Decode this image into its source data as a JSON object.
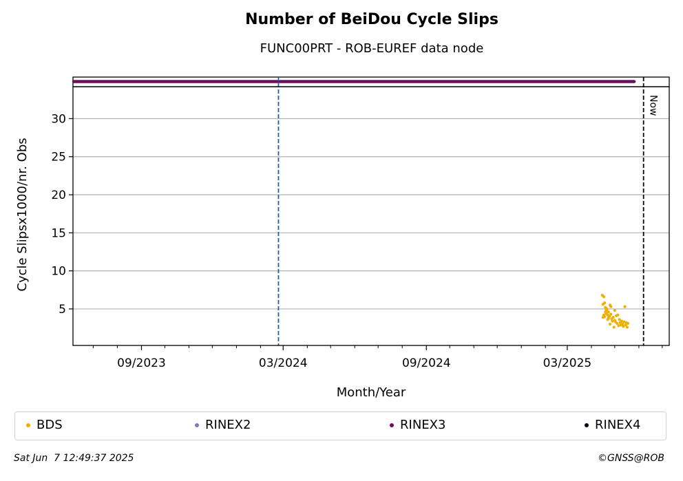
{
  "chart_data": {
    "type": "scatter",
    "title": "Number of BeiDou Cycle Slips",
    "subtitle": "FUNC00PRT - ROB-EUREF data node",
    "xlabel": "Month/Year",
    "ylabel": "Cycle Slipsx1000/nr. Obs",
    "xlim": [
      "2023-06-05",
      "2025-07-10"
    ],
    "ylim": [
      0.2,
      34.2
    ],
    "yticks": [
      5,
      10,
      15,
      20,
      25,
      30
    ],
    "xticks": [
      {
        "date": "2023-09-01",
        "label": "09/2023"
      },
      {
        "date": "2024-03-01",
        "label": "03/2024"
      },
      {
        "date": "2024-09-01",
        "label": "09/2024"
      },
      {
        "date": "2025-03-01",
        "label": "03/2025"
      }
    ],
    "minor_xticks": [
      "2023-07-01",
      "2023-08-01",
      "2023-10-01",
      "2023-11-01",
      "2023-12-01",
      "2024-01-01",
      "2024-02-01",
      "2024-04-01",
      "2024-05-01",
      "2024-06-01",
      "2024-07-01",
      "2024-08-01",
      "2024-10-01",
      "2024-11-01",
      "2024-12-01",
      "2025-01-01",
      "2025-02-01",
      "2025-04-01",
      "2025-05-01",
      "2025-06-01",
      "2025-07-01"
    ],
    "grid": "horizontal",
    "vlines": [
      {
        "date": "2024-02-24",
        "color": "#1f5fa6",
        "style": "dashed",
        "label": ""
      },
      {
        "date": "2025-06-07",
        "color": "#000000",
        "style": "dashed",
        "label": "Now"
      }
    ],
    "availability_strip": {
      "series": "RINEX3",
      "color": "#6a0f5d",
      "start": "2023-06-06",
      "end": "2025-05-26"
    },
    "series": [
      {
        "name": "BDS",
        "color": "#f0b000",
        "points": [
          {
            "x": "2025-04-15",
            "y": 6.8
          },
          {
            "x": "2025-04-17",
            "y": 6.6
          },
          {
            "x": "2025-04-16",
            "y": 5.6
          },
          {
            "x": "2025-04-18",
            "y": 5.8
          },
          {
            "x": "2025-04-17",
            "y": 4.2
          },
          {
            "x": "2025-04-16",
            "y": 3.9
          },
          {
            "x": "2025-04-18",
            "y": 4.0
          },
          {
            "x": "2025-04-19",
            "y": 5.2
          },
          {
            "x": "2025-04-19",
            "y": 4.6
          },
          {
            "x": "2025-04-20",
            "y": 4.9
          },
          {
            "x": "2025-04-20",
            "y": 4.4
          },
          {
            "x": "2025-04-21",
            "y": 5.0
          },
          {
            "x": "2025-04-21",
            "y": 4.8
          },
          {
            "x": "2025-04-22",
            "y": 4.2
          },
          {
            "x": "2025-04-22",
            "y": 3.6
          },
          {
            "x": "2025-04-23",
            "y": 4.6
          },
          {
            "x": "2025-04-23",
            "y": 3.8
          },
          {
            "x": "2025-04-24",
            "y": 4.0
          },
          {
            "x": "2025-04-25",
            "y": 5.5
          },
          {
            "x": "2025-04-25",
            "y": 3.0
          },
          {
            "x": "2025-04-26",
            "y": 5.3
          },
          {
            "x": "2025-04-26",
            "y": 4.3
          },
          {
            "x": "2025-04-27",
            "y": 3.7
          },
          {
            "x": "2025-04-28",
            "y": 3.4
          },
          {
            "x": "2025-04-29",
            "y": 3.9
          },
          {
            "x": "2025-04-30",
            "y": 2.6
          },
          {
            "x": "2025-05-01",
            "y": 4.8
          },
          {
            "x": "2025-05-01",
            "y": 3.5
          },
          {
            "x": "2025-05-02",
            "y": 3.3
          },
          {
            "x": "2025-05-03",
            "y": 4.1
          },
          {
            "x": "2025-05-04",
            "y": 3.1
          },
          {
            "x": "2025-05-05",
            "y": 4.2
          },
          {
            "x": "2025-05-06",
            "y": 2.8
          },
          {
            "x": "2025-05-07",
            "y": 3.6
          },
          {
            "x": "2025-05-08",
            "y": 3.2
          },
          {
            "x": "2025-05-09",
            "y": 2.9
          },
          {
            "x": "2025-05-10",
            "y": 3.4
          },
          {
            "x": "2025-05-11",
            "y": 3.0
          },
          {
            "x": "2025-05-12",
            "y": 2.7
          },
          {
            "x": "2025-05-13",
            "y": 3.3
          },
          {
            "x": "2025-05-14",
            "y": 5.3
          },
          {
            "x": "2025-05-15",
            "y": 2.9
          },
          {
            "x": "2025-05-16",
            "y": 3.2
          },
          {
            "x": "2025-05-17",
            "y": 2.6
          },
          {
            "x": "2025-05-18",
            "y": 3.1
          }
        ]
      },
      {
        "name": "RINEX2",
        "color": "#7d7bbd",
        "points": []
      },
      {
        "name": "RINEX3",
        "color": "#6a0f5d",
        "points": []
      },
      {
        "name": "RINEX4",
        "color": "#12001f",
        "points": []
      }
    ]
  },
  "legend": [
    {
      "label": "BDS",
      "color": "#f0b000"
    },
    {
      "label": "RINEX2",
      "color": "#7d7bbd"
    },
    {
      "label": "RINEX3",
      "color": "#6a0f5d"
    },
    {
      "label": "RINEX4",
      "color": "#12001f"
    }
  ],
  "footer": {
    "timestamp": "Sat Jun  7 12:49:37 2025",
    "copyright": "©GNSS@ROB"
  }
}
